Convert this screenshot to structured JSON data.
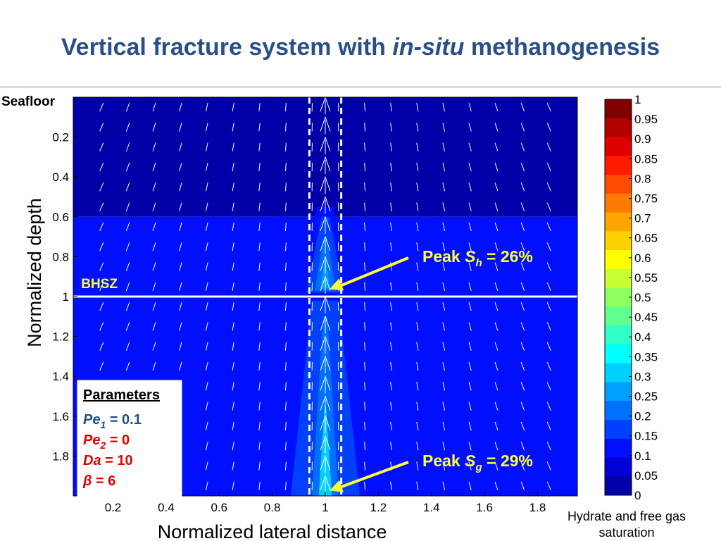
{
  "slide": {
    "title_part1": "Vertical fracture system with ",
    "title_italic": "in-situ",
    "title_part2": " methanogenesis"
  },
  "chart_data": {
    "type": "heatmap",
    "title": "",
    "xlabel": "Normalized lateral distance",
    "ylabel": "Normalized depth",
    "xlim": [
      0.05,
      1.95
    ],
    "ylim": [
      0,
      2
    ],
    "y_inverted": true,
    "x_ticks": [
      "0.2",
      "0.4",
      "0.6",
      "0.8",
      "1",
      "1.2",
      "1.4",
      "1.6",
      "1.8"
    ],
    "x_tick_values": [
      0.2,
      0.4,
      0.6,
      0.8,
      1,
      1.2,
      1.4,
      1.6,
      1.8
    ],
    "y_ticks": [
      "0.2",
      "0.4",
      "0.6",
      "0.8",
      "1",
      "1.2",
      "1.4",
      "1.6",
      "1.8"
    ],
    "y_tick_values": [
      0.2,
      0.4,
      0.6,
      0.8,
      1,
      1.2,
      1.4,
      1.6,
      1.8
    ],
    "seafloor_label": "Seafloor",
    "bhsz_label": "BHSZ",
    "bhsz_depth": 1,
    "fracture_bounds": [
      0.94,
      1.06
    ],
    "fracture_center": 1,
    "colormap": "jet",
    "colorbar": {
      "label_line1": "Hydrate and free gas",
      "label_line2": "saturation",
      "min": 0,
      "max": 1,
      "ticks": [
        "1",
        "0.95",
        "0.9",
        "0.85",
        "0.8",
        "0.75",
        "0.7",
        "0.65",
        "0.6",
        "0.55",
        "0.5",
        "0.45",
        "0.4",
        "0.35",
        "0.3",
        "0.25",
        "0.2",
        "0.15",
        "0.1",
        "0.05",
        "0"
      ],
      "levels": [
        "#800000",
        "#b00000",
        "#e00000",
        "#ff1a00",
        "#ff4a00",
        "#ff7a00",
        "#ffa500",
        "#ffd000",
        "#ffff00",
        "#c8ff30",
        "#90ff60",
        "#60ff90",
        "#30ffc8",
        "#00ffff",
        "#00d0ff",
        "#00a0ff",
        "#0070ff",
        "#0040ff",
        "#0010ff",
        "#0000d8",
        "#0000a8"
      ]
    },
    "saturation_field": {
      "background_above_transition": 0.02,
      "transition_depth": 0.6,
      "background_below_transition": 0.12,
      "background_below_bhsz": 0.09,
      "peak_hydrate": 0.26,
      "peak_gas": 0.29
    },
    "annotations": [
      {
        "prefix": "Peak ",
        "symbol": "S",
        "subscript": "h",
        "suffix": " = 26%",
        "target_x": 1,
        "target_y": 0.97
      },
      {
        "prefix": "Peak ",
        "symbol": "S",
        "subscript": "g",
        "suffix": " = 29%",
        "target_x": 1,
        "target_y": 1.98
      }
    ],
    "parameters": {
      "header": "Parameters",
      "rows": [
        {
          "symbol": "Pe",
          "subscript": "1",
          "value": " = 0.1",
          "color": "#1f4e8c"
        },
        {
          "symbol": "Pe",
          "subscript": "2",
          "value": " = 0",
          "color": "#e00000"
        },
        {
          "symbol": "Da",
          "subscript": "",
          "value": " = 10",
          "color": "#e00000"
        },
        {
          "symbol": "β",
          "subscript": "",
          "value": " = 6",
          "color": "#e00000"
        }
      ]
    }
  }
}
